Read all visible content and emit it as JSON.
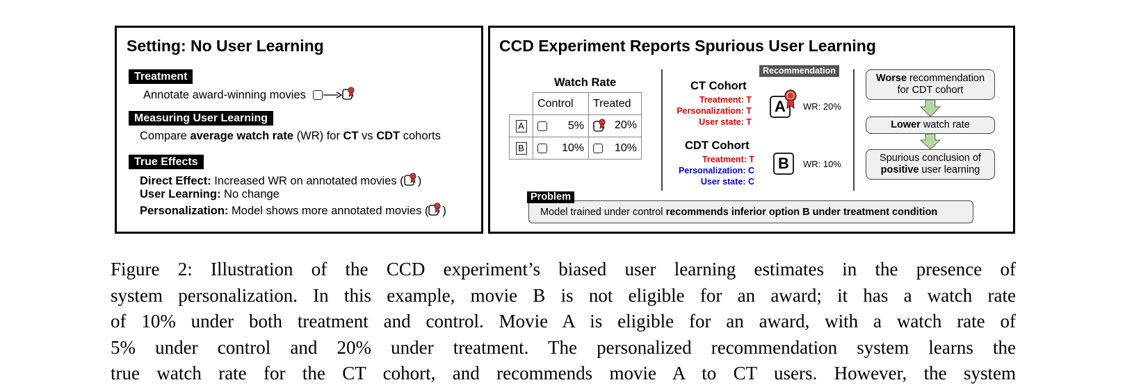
{
  "left_panel": {
    "title": "Setting: No User Learning",
    "treatment_tag": "Treatment",
    "treatment_text": "Annotate award-winning movies",
    "measuring_tag": "Measuring User Learning",
    "measuring": {
      "t1": "Compare ",
      "b1": "average watch rate",
      "t2": " (WR) for ",
      "b2": "CT",
      "t3": " vs ",
      "b3": "CDT",
      "t4": " cohorts"
    },
    "effects_tag": "True Effects",
    "effects": [
      {
        "label": "Direct Effect:",
        "text": " Increased WR on annotated movies (",
        "end": ")"
      },
      {
        "label": "User Learning:",
        "text": " No change",
        "end": ""
      },
      {
        "label": "Personalization:",
        "text": " Model shows more annotated movies (",
        "end": ")"
      }
    ]
  },
  "right_panel": {
    "title": "CCD Experiment Reports Spurious User Learning",
    "table": {
      "title": "Watch Rate",
      "headers": [
        "Control",
        "Treated"
      ],
      "rows": [
        {
          "label": "A",
          "control": "5%",
          "treated": "20%"
        },
        {
          "label": "B",
          "control": "10%",
          "treated": "10%"
        }
      ]
    },
    "ct": {
      "title": "CT Cohort",
      "treatment": "Treatment: T",
      "personalization": "Personalization: T",
      "user_state": "User state: T"
    },
    "cdt": {
      "title": "CDT Cohort",
      "treatment": "Treatment: T",
      "personalization": "Personalization: C",
      "user_state": "User state: C"
    },
    "recommendation_tag": "Recommendation",
    "rec_a": {
      "letter": "A",
      "wr": "WR: 20%"
    },
    "rec_b": {
      "letter": "B",
      "wr": "WR: 10%"
    },
    "flow": {
      "box1_bold": "Worse",
      "box1_text": " recommendation",
      "box1_line2": "for CDT cohort",
      "box2_bold": "Lower",
      "box2_text": " watch rate",
      "box3_line1": "Spurious conclusion of",
      "box3_bold": "positive",
      "box3_text": " user learning"
    },
    "problem_tag": "Problem",
    "problem_text": "Model trained under control ",
    "problem_bold": "recommends inferior option B under treatment condition"
  },
  "caption": {
    "line1": "Figure 2: Illustration of the CCD experiment’s biased user learning estimates in the presence of",
    "line2": "system personalization. In this example, movie B is not eligible for an award; it has a watch rate",
    "line3": "of 10% under both treatment and control. Movie A is eligible for an award, with a watch rate of",
    "line4": "5% under control and 20% under treatment. The personalized recommendation system learns the",
    "line5": "true watch rate for the CT cohort, and recommends movie A to CT users. However, the system"
  },
  "colors": {
    "red": "#e00000",
    "blue": "#0000dd",
    "tag_gray": "#555555",
    "arrow_green": "#b3d9a0"
  },
  "icons": [
    "movie-box-icon",
    "award-movie-icon",
    "arrow-right-icon",
    "down-arrow-icon"
  ]
}
